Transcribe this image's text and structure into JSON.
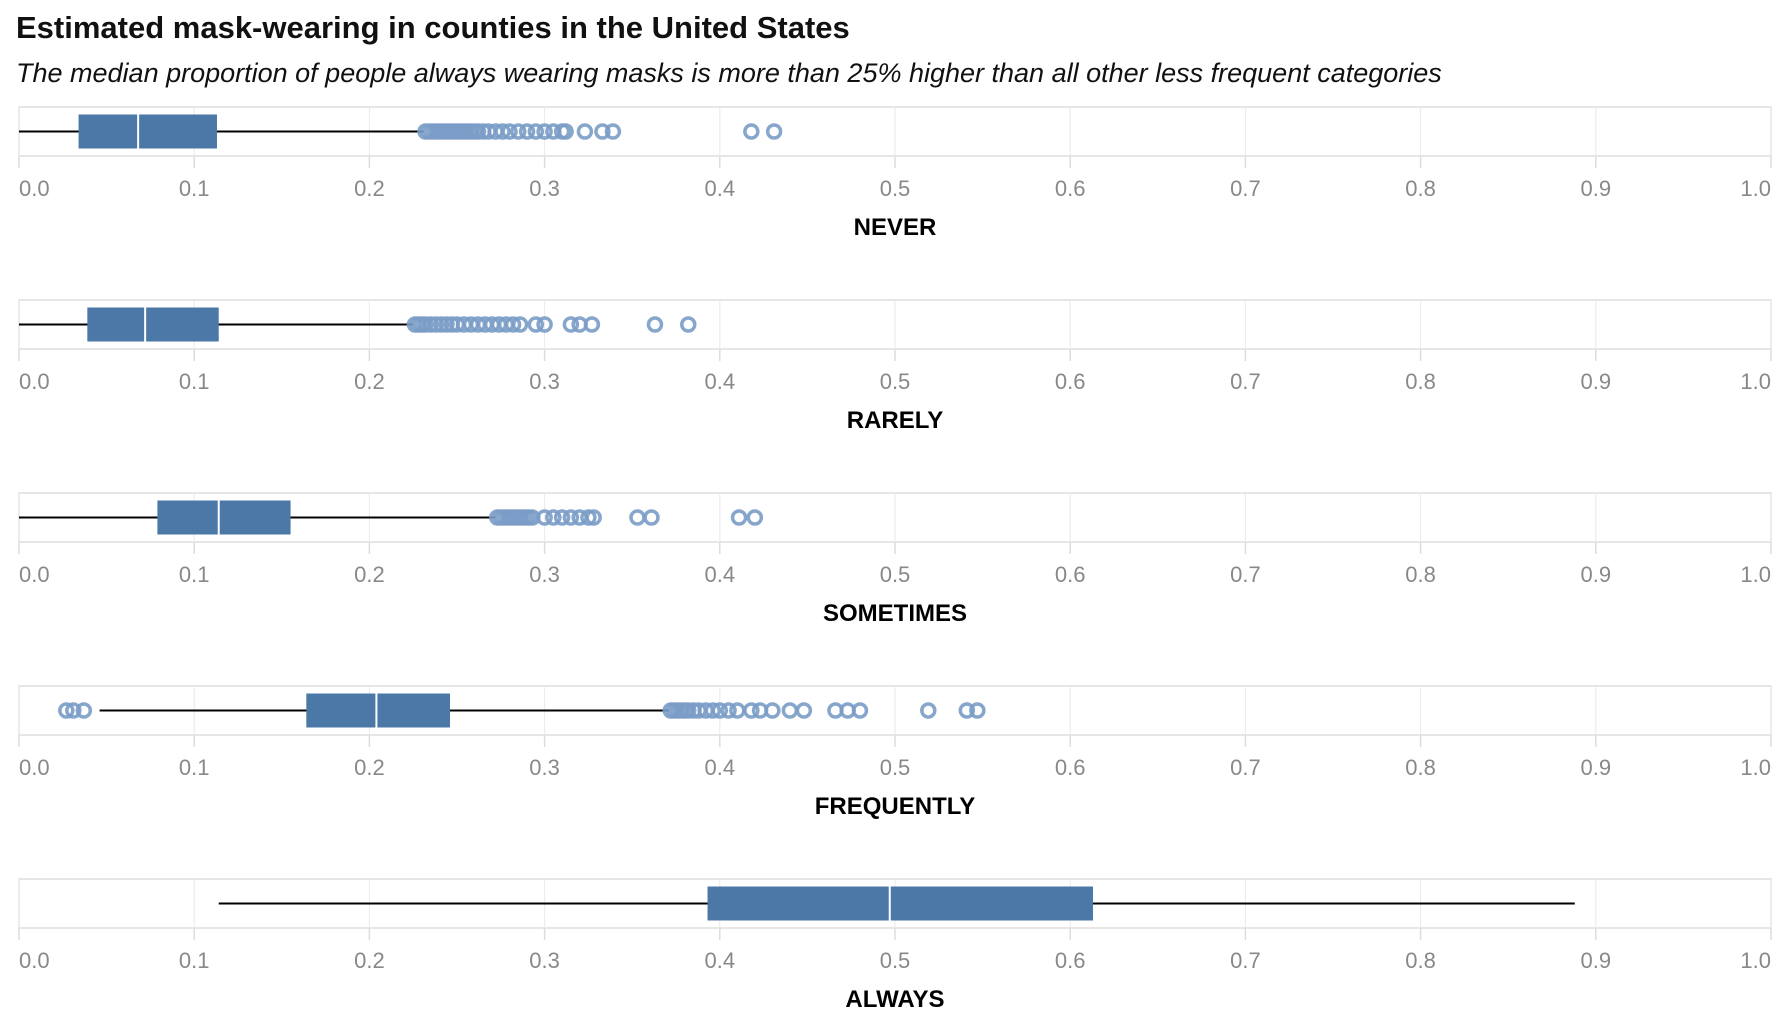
{
  "chart_data": {
    "type": "boxplot",
    "title": "Estimated mask-wearing in counties in the United States",
    "subtitle": "The median proportion of people always wearing masks is more than 25% higher than all other less frequent categories",
    "xlim": [
      0,
      1
    ],
    "x_ticks": [
      "0.0",
      "0.1",
      "0.2",
      "0.3",
      "0.4",
      "0.5",
      "0.6",
      "0.7",
      "0.8",
      "0.9",
      "1.0"
    ],
    "grid": "vertical",
    "colors": {
      "box": "#4c78a8",
      "outlier": "#7a9cc6",
      "median": "#ffffff",
      "whisker": "#000000",
      "frame": "#dddddd",
      "gridline": "#eaeaea",
      "tick_label": "#888888",
      "axis_title": "#000000"
    },
    "series": [
      {
        "name": "NEVER",
        "whisker_low": 0.0,
        "q1": 0.034,
        "median": 0.068,
        "q3": 0.113,
        "whisker_high": 0.231,
        "outliers": [
          0.232,
          0.234,
          0.236,
          0.238,
          0.24,
          0.242,
          0.244,
          0.246,
          0.248,
          0.25,
          0.252,
          0.254,
          0.256,
          0.258,
          0.26,
          0.262,
          0.265,
          0.268,
          0.272,
          0.276,
          0.28,
          0.285,
          0.29,
          0.295,
          0.3,
          0.305,
          0.31,
          0.312,
          0.323,
          0.333,
          0.339,
          0.418,
          0.431
        ]
      },
      {
        "name": "RARELY",
        "whisker_low": 0.0,
        "q1": 0.039,
        "median": 0.072,
        "q3": 0.114,
        "whisker_high": 0.225,
        "outliers": [
          0.226,
          0.228,
          0.23,
          0.232,
          0.235,
          0.238,
          0.241,
          0.244,
          0.247,
          0.25,
          0.254,
          0.258,
          0.262,
          0.266,
          0.27,
          0.274,
          0.278,
          0.282,
          0.286,
          0.295,
          0.3,
          0.315,
          0.32,
          0.327,
          0.363,
          0.382
        ]
      },
      {
        "name": "SOMETIMES",
        "whisker_low": 0.0,
        "q1": 0.079,
        "median": 0.114,
        "q3": 0.155,
        "whisker_high": 0.272,
        "outliers": [
          0.273,
          0.275,
          0.277,
          0.279,
          0.281,
          0.283,
          0.285,
          0.287,
          0.289,
          0.291,
          0.293,
          0.3,
          0.305,
          0.31,
          0.315,
          0.32,
          0.325,
          0.328,
          0.353,
          0.361,
          0.411,
          0.42
        ]
      },
      {
        "name": "FREQUENTLY",
        "whisker_low": 0.046,
        "q1": 0.164,
        "median": 0.204,
        "q3": 0.246,
        "whisker_high": 0.371,
        "outliers": [
          0.027,
          0.031,
          0.037,
          0.372,
          0.374,
          0.376,
          0.378,
          0.38,
          0.382,
          0.385,
          0.388,
          0.392,
          0.396,
          0.4,
          0.405,
          0.41,
          0.418,
          0.423,
          0.43,
          0.44,
          0.448,
          0.466,
          0.473,
          0.48,
          0.519,
          0.541,
          0.547
        ]
      },
      {
        "name": "ALWAYS",
        "whisker_low": 0.114,
        "q1": 0.393,
        "median": 0.497,
        "q3": 0.613,
        "whisker_high": 0.888,
        "outliers": []
      }
    ]
  }
}
